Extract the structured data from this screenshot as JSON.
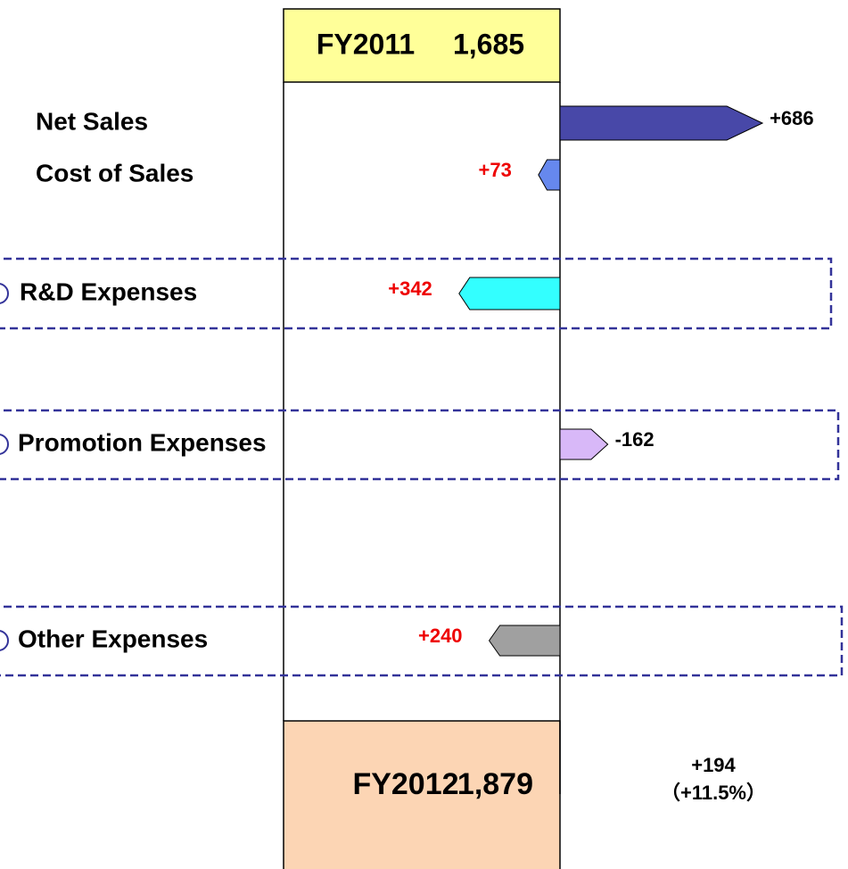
{
  "chart_data": {
    "type": "waterfall",
    "start": {
      "label": "FY2011",
      "value": 1685,
      "value_label": "1,685"
    },
    "end": {
      "label": "FY2012",
      "value": 1879,
      "value_label": "1,879"
    },
    "change": {
      "value": 194,
      "value_label": "+194",
      "percent": 11.5,
      "percent_label": "（+11.5%）"
    },
    "categories": [
      "Net Sales",
      "Cost of Sales",
      "R&D Expenses",
      "Promotion Expenses",
      "Other Expenses"
    ],
    "values": [
      686,
      73,
      342,
      -162,
      240
    ],
    "value_labels": [
      "+686",
      "+73",
      "+342",
      "-162",
      "+240"
    ],
    "colors": [
      "#4848a8",
      "#6688ee",
      "#33ffff",
      "#d8b8f8",
      "#a0a0a0"
    ],
    "label_colors": [
      "#000000",
      "#ee0000",
      "#ee0000",
      "#000000",
      "#ee0000"
    ],
    "increase_label_color": "#000000"
  }
}
